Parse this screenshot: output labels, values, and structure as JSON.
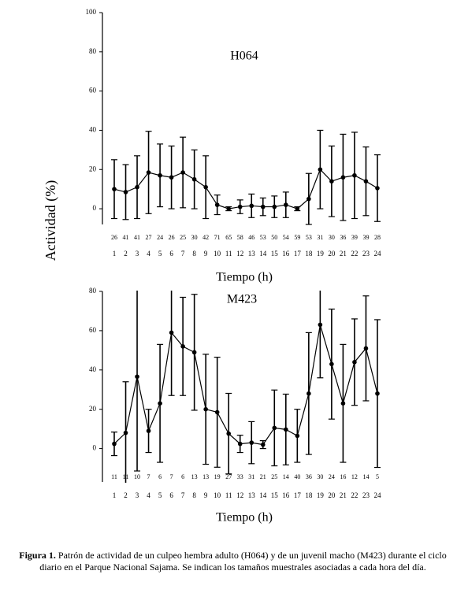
{
  "chart_data": [
    {
      "type": "line",
      "annotation": "H064",
      "ylabel": "Actividad (%)",
      "xlabel": "Tiempo (h)",
      "categories": [
        "1",
        "2",
        "3",
        "4",
        "5",
        "6",
        "7",
        "8",
        "9",
        "10",
        "11",
        "12",
        "13",
        "14",
        "15",
        "16",
        "17",
        "18",
        "19",
        "20",
        "21",
        "22",
        "23",
        "24"
      ],
      "series": [
        {
          "color": "#000000",
          "values": [
            10,
            8.5,
            11,
            18.5,
            17,
            16,
            18.5,
            15,
            11,
            2,
            0,
            1,
            1.5,
            1,
            1,
            2,
            0,
            5,
            20,
            14,
            16,
            17,
            14,
            10.5
          ],
          "errors": [
            15,
            14,
            16,
            21,
            16,
            16,
            18,
            15,
            16,
            5,
            1,
            3.5,
            6,
            4.5,
            5.5,
            6.5,
            1,
            13,
            20,
            18,
            22,
            22,
            17.5,
            17
          ],
          "n": [
            26,
            41,
            41,
            27,
            24,
            26,
            25,
            30,
            42,
            71,
            65,
            58,
            46,
            53,
            50,
            54,
            59,
            53,
            31,
            30,
            36,
            39,
            39,
            28
          ]
        }
      ],
      "ylim": [
        -8,
        100
      ],
      "yticks": [
        0,
        20,
        40,
        60,
        80,
        100
      ]
    },
    {
      "type": "line",
      "annotation": "M423",
      "xlabel": "Tiempo (h)",
      "categories": [
        "1",
        "2",
        "3",
        "4",
        "5",
        "6",
        "7",
        "8",
        "9",
        "10",
        "11",
        "12",
        "13",
        "14",
        "15",
        "16",
        "17",
        "18",
        "19",
        "20",
        "21",
        "22",
        "23",
        "24"
      ],
      "series": [
        {
          "color": "#000000",
          "values": [
            2.4,
            8,
            36.6,
            9,
            23,
            59,
            52,
            49,
            20,
            18.5,
            7.6,
            2.4,
            3,
            2,
            10.5,
            9.7,
            6.5,
            28,
            63,
            43,
            23,
            44,
            51,
            28
          ],
          "errors": [
            6,
            26,
            48,
            11,
            30,
            32,
            25,
            29.5,
            28,
            28,
            20.5,
            4.4,
            10.7,
            2,
            19.3,
            18,
            13.5,
            31,
            27,
            28,
            30,
            22,
            26.7,
            37.6
          ],
          "n": [
            11,
            11,
            10,
            7,
            6,
            7,
            6,
            13,
            13,
            19,
            27,
            33,
            31,
            21,
            25,
            14,
            40,
            36,
            30,
            24,
            16,
            12,
            14,
            5
          ]
        }
      ],
      "ylim": [
        -17,
        80
      ],
      "yticks": [
        0,
        20,
        40,
        60,
        80
      ]
    }
  ],
  "caption": {
    "label": "Figura 1.",
    "text": "Patrón de actividad de un culpeo hembra adulto (H064) y de un juvenil macho (M423) durante el ciclo diario en el Parque Nacional Sajama. Se indican los tamaños muestrales asociadas a cada hora del día."
  }
}
